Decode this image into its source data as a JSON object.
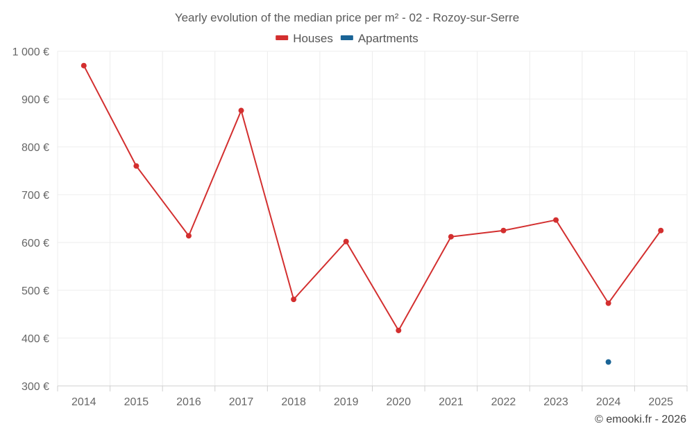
{
  "chart_data": {
    "type": "line",
    "title": "Yearly evolution of the median price per m² - 02 - Rozoy-sur-Serre",
    "categories": [
      "2014",
      "2015",
      "2016",
      "2017",
      "2018",
      "2019",
      "2020",
      "2021",
      "2022",
      "2023",
      "2024",
      "2025"
    ],
    "series": [
      {
        "name": "Houses",
        "color": "#d32f2f",
        "values": [
          970,
          760,
          614,
          876,
          481,
          602,
          416,
          612,
          625,
          647,
          473,
          625
        ]
      },
      {
        "name": "Apartments",
        "color": "#1a6496",
        "values": [
          null,
          null,
          null,
          null,
          null,
          null,
          null,
          null,
          null,
          null,
          350,
          null
        ]
      }
    ],
    "ylim": [
      300,
      1000
    ],
    "yticks": [
      300,
      400,
      500,
      600,
      700,
      800,
      900,
      1000
    ],
    "ytick_labels": [
      "300 €",
      "400 €",
      "500 €",
      "600 €",
      "700 €",
      "800 €",
      "900 €",
      "1 000 €"
    ],
    "xlabel": "",
    "ylabel": "",
    "grid": true,
    "legend_position": "top-center"
  },
  "credit": "© emooki.fr - 2026"
}
